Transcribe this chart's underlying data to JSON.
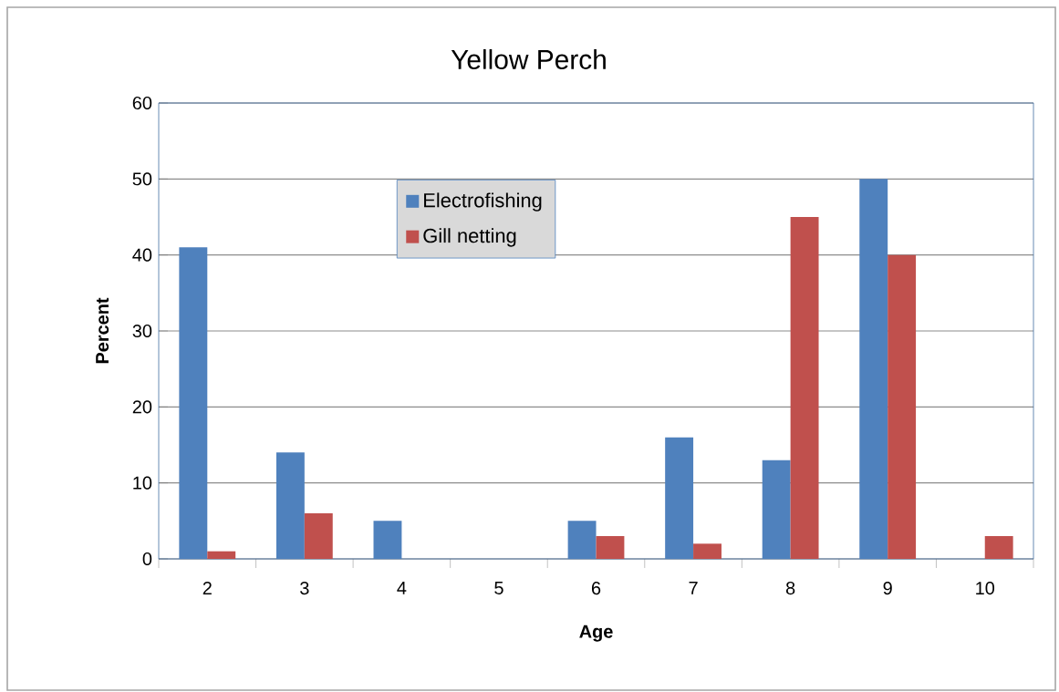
{
  "chart_data": {
    "type": "bar",
    "title": "Yellow Perch",
    "xlabel": "Age",
    "ylabel": "Percent",
    "categories": [
      "2",
      "3",
      "4",
      "5",
      "6",
      "7",
      "8",
      "9",
      "10"
    ],
    "series": [
      {
        "name": "Electrofishing",
        "color": "#4f81bd",
        "values": [
          41,
          14,
          5,
          0,
          5,
          16,
          13,
          50,
          0
        ]
      },
      {
        "name": "Gill netting",
        "color": "#c0504d",
        "values": [
          1,
          6,
          0,
          0,
          3,
          2,
          45,
          40,
          3
        ]
      }
    ],
    "ylim": [
      0,
      60
    ],
    "yticks": [
      0,
      10,
      20,
      30,
      40,
      50,
      60
    ],
    "grid": "y",
    "legend": "top"
  }
}
